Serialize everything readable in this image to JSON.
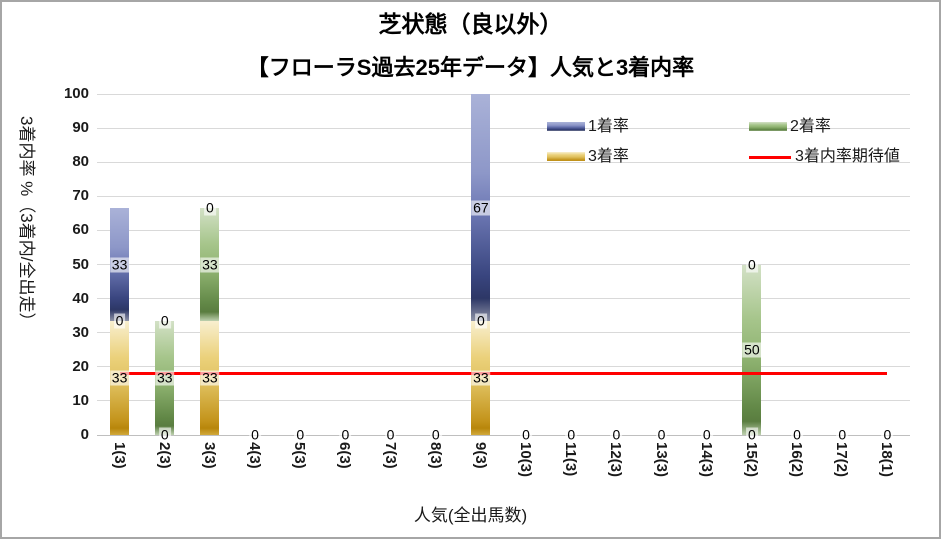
{
  "title": "芝状態（良以外）",
  "subtitle": "【フローラS過去25年データ】人気と3着内率",
  "legend": [
    {
      "label": "1着率",
      "type": "box",
      "series": "first"
    },
    {
      "label": "2着率",
      "type": "box",
      "series": "second"
    },
    {
      "label": "3着率",
      "type": "box",
      "series": "third"
    },
    {
      "label": "3着内率期待値",
      "type": "line",
      "series": "expected"
    }
  ],
  "chart_data": {
    "type": "bar",
    "stacked": true,
    "title": "芝状態（良以外）",
    "subtitle": "【フローラS過去25年データ】人気と3着内率",
    "xlabel": "人気(全出馬数)",
    "ylabel": "3着内率 %（3着内/全出走）",
    "ylim": [
      0,
      100
    ],
    "ytick_step": 10,
    "grid": true,
    "legend_position": "inside-top-right",
    "categories": [
      "1(3)",
      "2(3)",
      "3(3)",
      "4(3)",
      "5(3)",
      "6(3)",
      "7(3)",
      "8(3)",
      "9(3)",
      "10(3)",
      "11(3)",
      "12(3)",
      "13(3)",
      "14(3)",
      "15(2)",
      "16(2)",
      "17(2)",
      "18(1)"
    ],
    "series": [
      {
        "name": "1着率",
        "key": "first",
        "color": "#4a5798",
        "values": [
          33.3,
          0,
          0,
          0,
          0,
          0,
          0,
          0,
          66.7,
          0,
          0,
          0,
          0,
          0,
          0,
          0,
          0,
          0
        ]
      },
      {
        "name": "2着率",
        "key": "second",
        "color": "#7ca35c",
        "values": [
          0,
          33.3,
          33.3,
          0,
          0,
          0,
          0,
          0,
          0,
          0,
          0,
          0,
          0,
          0,
          50,
          0,
          0,
          0
        ]
      },
      {
        "name": "3着率",
        "key": "third",
        "color": "#d0a02d",
        "values": [
          33.3,
          0,
          33.3,
          0,
          0,
          0,
          0,
          0,
          33.3,
          0,
          0,
          0,
          0,
          0,
          0,
          0,
          0,
          0
        ]
      }
    ],
    "expected_line": {
      "name": "3着内率期待値",
      "color": "#ff0000",
      "value": 18
    },
    "data_labels_shown": {
      "1(3)": [
        "33",
        "0",
        "33"
      ],
      "2(3)": [
        "0",
        "33",
        "0"
      ],
      "3(3)": [
        "33",
        "33",
        "0"
      ],
      "9(3)": [
        "33",
        "0",
        "67"
      ],
      "15(2)": [
        "0",
        "50",
        "0"
      ],
      "all_zero_categories": "0"
    }
  }
}
